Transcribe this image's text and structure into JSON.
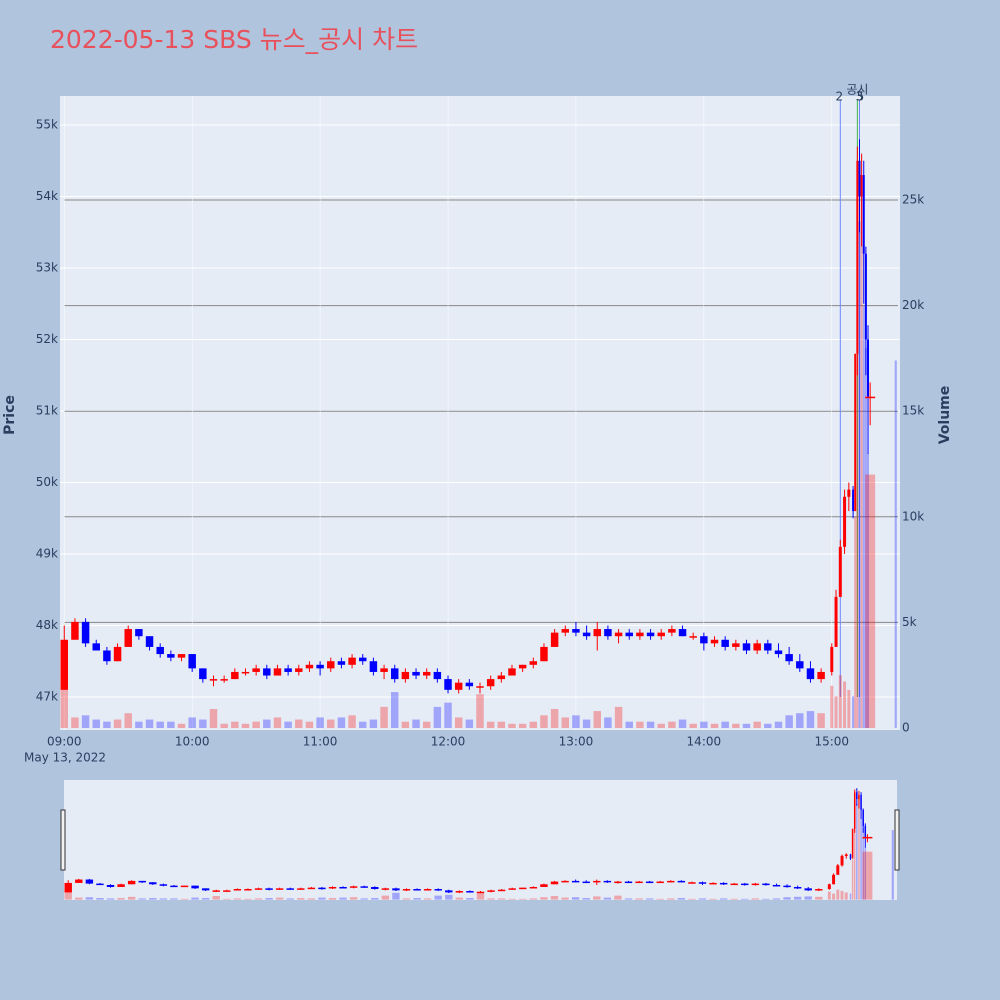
{
  "chart_data": {
    "type": "candlestick",
    "title": "2022-05-13 SBS 뉴스_공시 차트",
    "x_date_label": "May 13, 2022",
    "yaxis_title": "Price",
    "y2axis_title": "Volume",
    "increasing_color": "#ff0000",
    "decreasing_color": "#0000ff",
    "grid": true,
    "xlim": [
      "08:58",
      "15:32"
    ],
    "xticks": [
      "09:00",
      "10:00",
      "11:00",
      "12:00",
      "13:00",
      "14:00",
      "15:00"
    ],
    "ylim": [
      46538,
      55406
    ],
    "yticks": [
      {
        "value": 47000,
        "label": "47k"
      },
      {
        "value": 48000,
        "label": "48k"
      },
      {
        "value": 49000,
        "label": "49k"
      },
      {
        "value": 50000,
        "label": "50k"
      },
      {
        "value": 51000,
        "label": "51k"
      },
      {
        "value": 52000,
        "label": "52k"
      },
      {
        "value": 53000,
        "label": "53k"
      },
      {
        "value": 54000,
        "label": "54k"
      },
      {
        "value": 55000,
        "label": "55k"
      }
    ],
    "y2lim": [
      -95,
      29924
    ],
    "y2ticks": [
      0,
      {
        "value": 5000,
        "label": "5k"
      },
      {
        "value": 10000,
        "label": "10k"
      },
      {
        "value": 15000,
        "label": "15k"
      },
      {
        "value": 20000,
        "label": "20k"
      },
      {
        "value": 25000,
        "label": "25k"
      }
    ],
    "annotations": [
      {
        "x": "15:04",
        "label": "2",
        "color": "#6f86ff"
      },
      {
        "x": "15:12",
        "label": "공시",
        "color": "#3cb44b"
      },
      {
        "x": "15:13",
        "label": "3",
        "color": "#6f86ff"
      },
      {
        "x": "15:13",
        "label": "5",
        "color": "#6f86ff"
      }
    ],
    "x": [
      "09:00",
      "09:05",
      "09:10",
      "09:15",
      "09:20",
      "09:25",
      "09:30",
      "09:35",
      "09:40",
      "09:45",
      "09:50",
      "09:55",
      "10:00",
      "10:05",
      "10:10",
      "10:15",
      "10:20",
      "10:25",
      "10:30",
      "10:35",
      "10:40",
      "10:45",
      "10:50",
      "10:55",
      "11:00",
      "11:05",
      "11:10",
      "11:15",
      "11:20",
      "11:25",
      "11:30",
      "11:35",
      "11:40",
      "11:45",
      "11:50",
      "11:55",
      "12:00",
      "12:05",
      "12:10",
      "12:15",
      "12:20",
      "12:25",
      "12:30",
      "12:35",
      "12:40",
      "12:45",
      "12:50",
      "12:55",
      "13:00",
      "13:05",
      "13:10",
      "13:15",
      "13:20",
      "13:25",
      "13:30",
      "13:35",
      "13:40",
      "13:45",
      "13:50",
      "13:55",
      "14:00",
      "14:05",
      "14:10",
      "14:15",
      "14:20",
      "14:25",
      "14:30",
      "14:35",
      "14:40",
      "14:45",
      "14:50",
      "14:55",
      "15:00",
      "15:02",
      "15:04",
      "15:06",
      "15:08",
      "15:10",
      "15:11",
      "15:12",
      "15:13",
      "15:14",
      "15:15",
      "15:16",
      "15:17",
      "15:18",
      "15:30"
    ],
    "open": [
      47100,
      47800,
      48050,
      47750,
      47650,
      47500,
      47700,
      47950,
      47850,
      47700,
      47600,
      47550,
      47600,
      47400,
      47250,
      47250,
      47250,
      47350,
      47350,
      47400,
      47300,
      47400,
      47350,
      47400,
      47450,
      47400,
      47500,
      47450,
      47550,
      47500,
      47350,
      47400,
      47250,
      47350,
      47300,
      47350,
      47250,
      47100,
      47200,
      47150,
      47150,
      47250,
      47300,
      47400,
      47450,
      47500,
      47700,
      47900,
      47950,
      47900,
      47850,
      47950,
      47850,
      47900,
      47850,
      47900,
      47850,
      47900,
      47950,
      47850,
      47850,
      47750,
      47800,
      47700,
      47750,
      47650,
      47750,
      47650,
      47600,
      47500,
      47400,
      47250,
      47350,
      47700,
      48400,
      49100,
      49800,
      49900,
      49600,
      51800,
      54500,
      54000,
      54300,
      53200,
      52000,
      51200,
      null
    ],
    "high": [
      48000,
      48100,
      48100,
      47800,
      47700,
      47750,
      48000,
      47950,
      47850,
      47750,
      47650,
      47600,
      47600,
      47400,
      47300,
      47300,
      47400,
      47400,
      47450,
      47450,
      47450,
      47450,
      47450,
      47500,
      47500,
      47550,
      47550,
      47600,
      47600,
      47550,
      47450,
      47450,
      47400,
      47400,
      47400,
      47400,
      47300,
      47250,
      47250,
      47200,
      47300,
      47350,
      47450,
      47450,
      47550,
      47750,
      47950,
      48000,
      48050,
      48000,
      48050,
      48000,
      47950,
      47950,
      47950,
      47950,
      47950,
      48000,
      48000,
      47900,
      47900,
      47850,
      47850,
      47800,
      47800,
      47800,
      47800,
      47750,
      47700,
      47600,
      47500,
      47400,
      47750,
      48500,
      49200,
      49900,
      50000,
      49950,
      51800,
      54700,
      54800,
      54600,
      54500,
      53300,
      52200,
      51400,
      null
    ],
    "low": [
      47100,
      47850,
      47700,
      47650,
      47450,
      47500,
      47700,
      47800,
      47650,
      47550,
      47500,
      47500,
      47350,
      47200,
      47150,
      47200,
      47250,
      47300,
      47300,
      47250,
      47300,
      47300,
      47300,
      47350,
      47300,
      47350,
      47400,
      47400,
      47450,
      47300,
      47250,
      47200,
      47200,
      47250,
      47250,
      47200,
      47050,
      47050,
      47100,
      47050,
      47100,
      47200,
      47300,
      47350,
      47400,
      47500,
      47700,
      47850,
      47850,
      47800,
      47650,
      47800,
      47750,
      47800,
      47800,
      47800,
      47800,
      47850,
      47850,
      47800,
      47650,
      47700,
      47650,
      47650,
      47600,
      47600,
      47600,
      47550,
      47450,
      47350,
      47200,
      47200,
      47300,
      47700,
      48400,
      49000,
      49600,
      49500,
      49600,
      51500,
      53500,
      53300,
      52500,
      51500,
      50400,
      50800,
      null
    ],
    "close": [
      47800,
      48050,
      47750,
      47650,
      47500,
      47700,
      47950,
      47850,
      47700,
      47600,
      47550,
      47600,
      47400,
      47250,
      47250,
      47250,
      47350,
      47350,
      47400,
      47300,
      47400,
      47350,
      47400,
      47450,
      47400,
      47500,
      47450,
      47550,
      47500,
      47350,
      47400,
      47250,
      47350,
      47300,
      47350,
      47250,
      47100,
      47200,
      47150,
      47150,
      47250,
      47300,
      47400,
      47450,
      47500,
      47700,
      47900,
      47950,
      47900,
      47850,
      47950,
      47850,
      47900,
      47850,
      47900,
      47850,
      47900,
      47950,
      47850,
      47850,
      47750,
      47800,
      47700,
      47750,
      47650,
      47750,
      47650,
      47600,
      47500,
      47400,
      47250,
      47350,
      47700,
      48400,
      49100,
      49800,
      49900,
      49600,
      51800,
      54500,
      54000,
      54300,
      53200,
      52000,
      51200,
      51200,
      null
    ],
    "volume": [
      2000,
      500,
      600,
      400,
      300,
      400,
      700,
      300,
      400,
      300,
      300,
      200,
      500,
      400,
      900,
      200,
      300,
      200,
      300,
      400,
      500,
      300,
      400,
      300,
      500,
      400,
      500,
      600,
      300,
      400,
      1000,
      1700,
      300,
      400,
      300,
      1000,
      1200,
      500,
      400,
      1600,
      300,
      300,
      200,
      200,
      300,
      600,
      900,
      500,
      600,
      400,
      800,
      500,
      1000,
      300,
      300,
      300,
      200,
      300,
      400,
      200,
      300,
      200,
      300,
      200,
      200,
      300,
      200,
      300,
      600,
      700,
      800,
      700,
      2000,
      1500,
      2500,
      2200,
      1800,
      1500,
      10000,
      25000,
      24000,
      26000,
      20000,
      18000,
      13000,
      12000,
      17400
    ]
  }
}
